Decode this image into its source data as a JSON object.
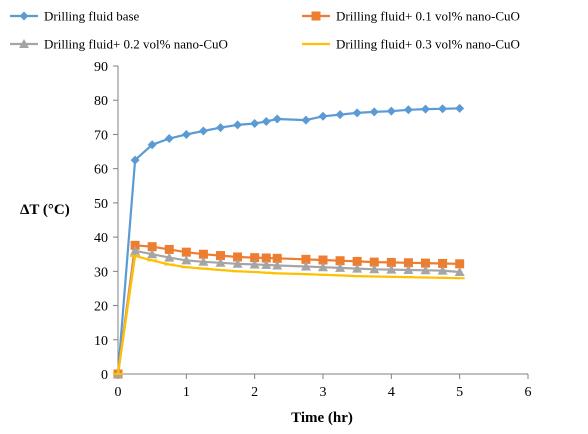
{
  "chart_data": {
    "type": "line",
    "xlabel": "Time (hr)",
    "ylabel": "ΔT (°C)",
    "xlim": [
      0,
      6
    ],
    "ylim": [
      0,
      90
    ],
    "xticks": [
      "0",
      "1",
      "2",
      "3",
      "4",
      "5",
      "6"
    ],
    "yticks": [
      "0",
      "10",
      "20",
      "30",
      "40",
      "50",
      "60",
      "70",
      "80",
      "90"
    ],
    "grid": false,
    "legend_position": "top",
    "series": [
      {
        "name": "Drilling fluid base",
        "color": "#5B9BD5",
        "marker": "diamond",
        "x": [
          0,
          0.25,
          0.5,
          0.75,
          1.0,
          1.25,
          1.5,
          1.75,
          2.0,
          2.17,
          2.33,
          2.75,
          3.0,
          3.25,
          3.5,
          3.75,
          4.0,
          4.25,
          4.5,
          4.75,
          5.0
        ],
        "y": [
          0,
          62.5,
          67,
          68.8,
          70,
          71,
          72,
          72.8,
          73.2,
          73.8,
          74.5,
          74.2,
          75.3,
          75.8,
          76.3,
          76.6,
          76.8,
          77.2,
          77.4,
          77.5,
          77.6
        ]
      },
      {
        "name": "Drilling fluid+ 0.1 vol% nano-CuO",
        "color": "#ED7D31",
        "marker": "square",
        "x": [
          0,
          0.25,
          0.5,
          0.75,
          1.0,
          1.25,
          1.5,
          1.75,
          2.0,
          2.17,
          2.33,
          2.75,
          3.0,
          3.25,
          3.5,
          3.75,
          4.0,
          4.25,
          4.5,
          4.75,
          5.0
        ],
        "y": [
          0,
          37.6,
          37.2,
          36.4,
          35.6,
          35.0,
          34.6,
          34.2,
          34.0,
          33.9,
          33.8,
          33.5,
          33.3,
          33.1,
          32.9,
          32.7,
          32.6,
          32.5,
          32.4,
          32.3,
          32.2
        ]
      },
      {
        "name": "Drilling fluid+ 0.2 vol% nano-CuO",
        "color": "#A5A5A5",
        "marker": "triangle",
        "x": [
          0,
          0.25,
          0.5,
          0.75,
          1.0,
          1.25,
          1.5,
          1.75,
          2.0,
          2.17,
          2.33,
          2.75,
          3.0,
          3.25,
          3.5,
          3.75,
          4.0,
          4.25,
          4.5,
          4.75,
          5.0
        ],
        "y": [
          0,
          36.0,
          35.0,
          34.0,
          33.2,
          32.8,
          32.5,
          32.2,
          32.0,
          31.9,
          31.7,
          31.4,
          31.2,
          31.0,
          30.8,
          30.6,
          30.5,
          30.4,
          30.3,
          30.2,
          29.8
        ]
      },
      {
        "name": "Drilling fluid+ 0.3 vol% nano-CuO",
        "color": "#FFC000",
        "marker": "line",
        "x": [
          0,
          0.25,
          0.5,
          0.75,
          1.0,
          1.25,
          1.5,
          1.75,
          2.0,
          2.17,
          2.33,
          2.75,
          3.0,
          3.25,
          3.5,
          3.75,
          4.0,
          4.25,
          4.5,
          4.75,
          5.0
        ],
        "y": [
          0,
          34.5,
          33.2,
          32.0,
          31.2,
          30.8,
          30.4,
          30.0,
          29.8,
          29.6,
          29.4,
          29.2,
          29.0,
          28.8,
          28.6,
          28.5,
          28.4,
          28.3,
          28.2,
          28.1,
          28.0
        ]
      }
    ]
  }
}
